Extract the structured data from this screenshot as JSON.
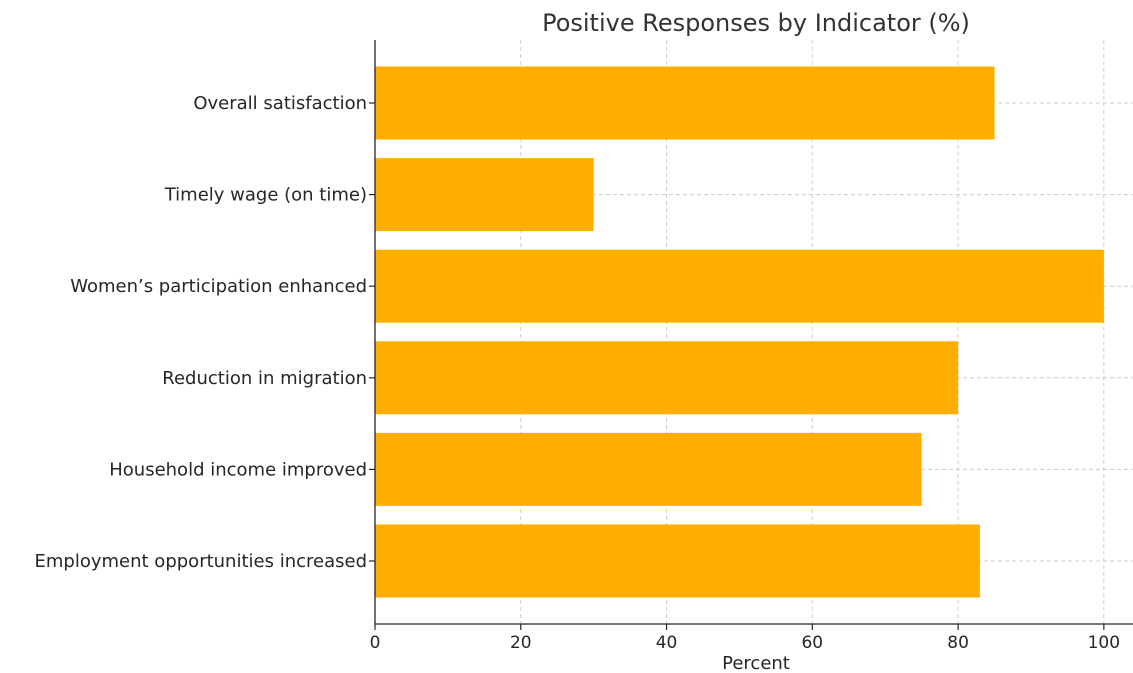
{
  "chart_data": {
    "type": "bar",
    "orientation": "horizontal",
    "title": "Positive Responses by Indicator (%)",
    "xlabel": "Percent",
    "ylabel": "",
    "categories": [
      "Employment opportunities increased",
      "Household income improved",
      "Reduction in migration",
      "Women’s participation enhanced",
      "Timely wage (on time)",
      "Overall satisfaction"
    ],
    "values": [
      83,
      75,
      80,
      100,
      30,
      85
    ],
    "xlim": [
      0,
      104
    ],
    "xticks": [
      0,
      20,
      40,
      60,
      80,
      100
    ],
    "xtick_labels": [
      "0",
      "20",
      "40",
      "60",
      "80",
      "100"
    ],
    "grid": true,
    "bar_color": "#ffae00"
  }
}
